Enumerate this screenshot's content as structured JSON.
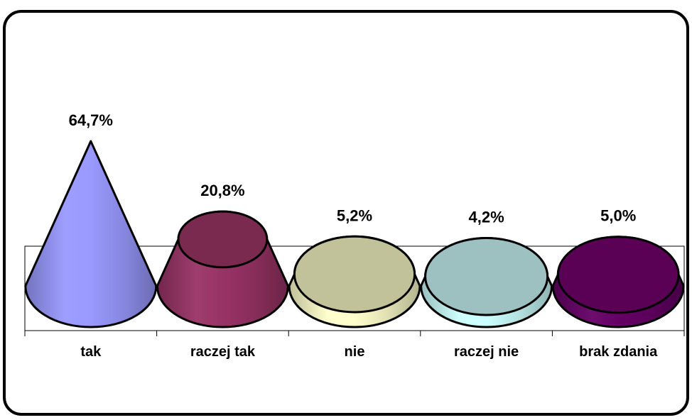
{
  "chart_data": {
    "type": "bar",
    "shape": "cone",
    "categories": [
      "tak",
      "raczej tak",
      "nie",
      "raczej nie",
      "brak zdania"
    ],
    "values": [
      64.7,
      20.8,
      5.2,
      4.2,
      5.0
    ],
    "data_labels": [
      "64,7%",
      "20,8%",
      "5,2%",
      "4,2%",
      "5,0%"
    ],
    "title": "",
    "xlabel": "",
    "ylabel": "",
    "ylim": [
      0,
      64.7
    ],
    "grid": false,
    "legend": "none",
    "colors": {
      "side": [
        "#9999ff",
        "#993366",
        "#ffffcc",
        "#ccffff",
        "#660066"
      ],
      "top": [
        "#9999ff",
        "#7a2a4e",
        "#c2c29a",
        "#9dc0c0",
        "#5a0055"
      ],
      "outline": "#000000",
      "frame": "#000000"
    }
  }
}
